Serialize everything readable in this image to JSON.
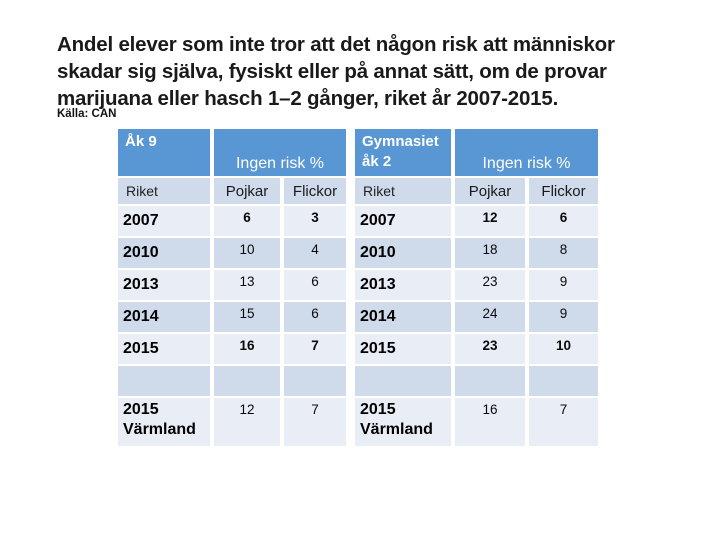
{
  "slide": {
    "title_lines": [
      "Andel elever som inte tror att det någon risk att människor",
      "skadar sig själva, fysiskt eller på annat sätt, om de provar",
      "marijuana eller hasch 1–2 gånger, riket år 2007-2015."
    ],
    "source": "Källa: CAN"
  },
  "colors": {
    "header_blue": "#5897D3",
    "band_dark": "#CFDAEB",
    "band_light": "#E9EDF5",
    "header_text": "#FFFFFF",
    "title_text": "#1A1A1A"
  },
  "tables": [
    {
      "id": "ak9",
      "group_label": "Åk 9",
      "metric_label": "Ingen risk %",
      "row_header": "Riket",
      "columns": [
        "Pojkar",
        "Flickor"
      ],
      "rows": [
        {
          "label": "2007",
          "values": [
            "6",
            "3"
          ],
          "values_bold": true
        },
        {
          "label": "2010",
          "values": [
            "10",
            "4"
          ],
          "values_bold": false
        },
        {
          "label": "2013",
          "values": [
            "13",
            "6"
          ],
          "values_bold": false
        },
        {
          "label": "2014",
          "values": [
            "15",
            "6"
          ],
          "values_bold": false
        },
        {
          "label": "2015",
          "values": [
            "16",
            "7"
          ],
          "values_bold": true
        },
        {
          "label": "",
          "values": [
            "",
            ""
          ],
          "values_bold": false
        },
        {
          "label": "2015\nVärmland",
          "values": [
            "12",
            "7"
          ],
          "values_bold": false
        }
      ]
    },
    {
      "id": "gymnasiet-ak2",
      "group_label": "Gymnasiet\nåk 2",
      "metric_label": "Ingen risk %",
      "row_header": "Riket",
      "columns": [
        "Pojkar",
        "Flickor"
      ],
      "rows": [
        {
          "label": "2007",
          "values": [
            "12",
            "6"
          ],
          "values_bold": true
        },
        {
          "label": "2010",
          "values": [
            "18",
            "8"
          ],
          "values_bold": false
        },
        {
          "label": "2013",
          "values": [
            "23",
            "9"
          ],
          "values_bold": false
        },
        {
          "label": "2014",
          "values": [
            "24",
            "9"
          ],
          "values_bold": false
        },
        {
          "label": "2015",
          "values": [
            "23",
            "10"
          ],
          "values_bold": true
        },
        {
          "label": "",
          "values": [
            "",
            ""
          ],
          "values_bold": false
        },
        {
          "label": "2015\nVärmland",
          "values": [
            "16",
            "7"
          ],
          "values_bold": false
        }
      ]
    }
  ]
}
